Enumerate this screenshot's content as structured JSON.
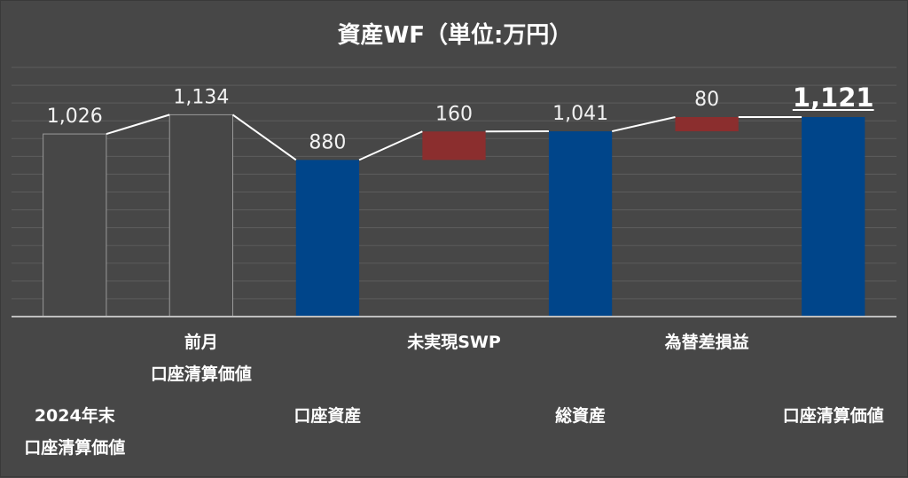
{
  "chart_data": {
    "type": "waterfall",
    "title": "資産WF（単位:万円）",
    "ylim": [
      0,
      1400
    ],
    "grid": true,
    "categories": [
      {
        "lines": [
          "2024年末",
          "口座清算価値"
        ],
        "row": 2
      },
      {
        "lines": [
          "前月",
          "口座清算価値"
        ],
        "row": 0
      },
      {
        "lines": [
          "口座資産"
        ],
        "row": 2
      },
      {
        "lines": [
          "未実現SWP"
        ],
        "row": 0
      },
      {
        "lines": [
          "総資産"
        ],
        "row": 2
      },
      {
        "lines": [
          "為替差損益"
        ],
        "row": 0
      },
      {
        "lines": [
          "口座清算価値"
        ],
        "row": 2
      }
    ],
    "bars": [
      {
        "label": "1,026",
        "base": 0,
        "top": 1026,
        "kind": "outline"
      },
      {
        "label": "1,134",
        "base": 0,
        "top": 1134,
        "kind": "outline"
      },
      {
        "label": "880",
        "base": 0,
        "top": 880,
        "kind": "total"
      },
      {
        "label": "160",
        "base": 880,
        "top": 1040,
        "kind": "delta"
      },
      {
        "label": "1,041",
        "base": 0,
        "top": 1041,
        "kind": "total"
      },
      {
        "label": "80",
        "base": 1041,
        "top": 1121,
        "kind": "delta"
      },
      {
        "label": "1,121",
        "base": 0,
        "top": 1121,
        "kind": "total",
        "emphasis": true
      }
    ],
    "colors": {
      "total": "#00458a",
      "delta": "#8b2e2e",
      "outline_fill": "#474747",
      "outline_stroke": "#9a9a9a",
      "connector": "#ffffff",
      "grid": "#5c5c5c",
      "axis": "#bfbfbf"
    }
  }
}
